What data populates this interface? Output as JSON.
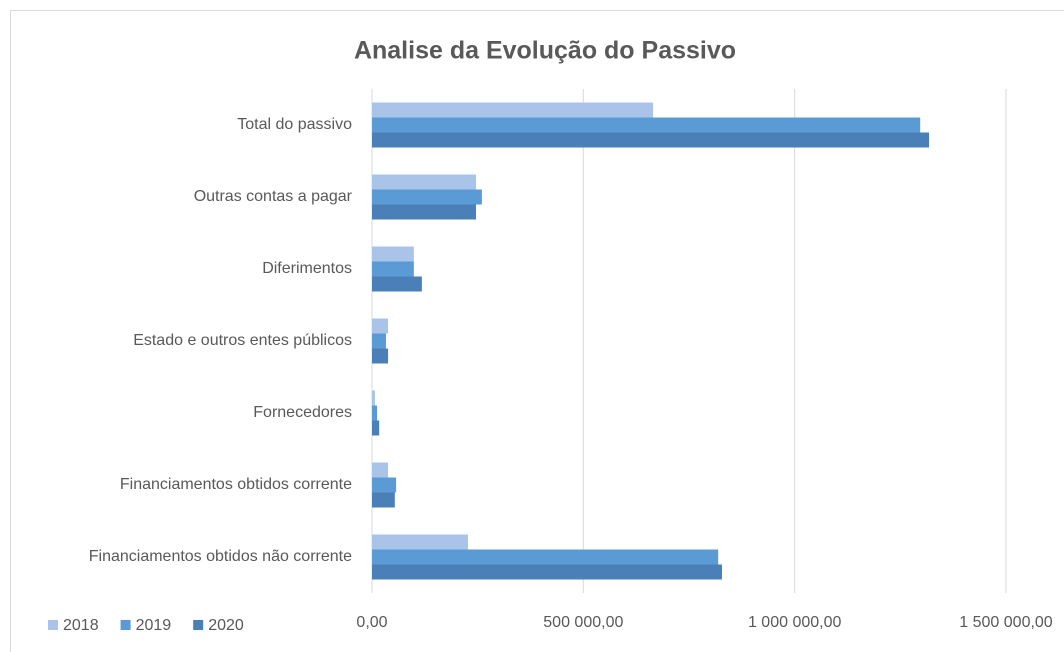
{
  "chart_data": {
    "type": "bar",
    "orientation": "horizontal",
    "title": "Analise da Evolução do Passivo",
    "categories": [
      "Total do passivo",
      "Outras contas a pagar",
      "Diferimentos",
      "Estado e outros entes públicos",
      "Fornecedores",
      "Financiamentos obtidos corrente",
      "Financiamentos obtidos não corrente"
    ],
    "series": [
      {
        "name": "2018",
        "color": "#a9c4e8",
        "values": [
          665000,
          246000,
          99000,
          38000,
          7000,
          38000,
          227000
        ]
      },
      {
        "name": "2019",
        "color": "#5b9bd5",
        "values": [
          1297000,
          260000,
          99000,
          33000,
          12000,
          57000,
          819000
        ]
      },
      {
        "name": "2020",
        "color": "#4a7fb8",
        "values": [
          1318000,
          246000,
          118000,
          38000,
          17000,
          54000,
          828000
        ]
      }
    ],
    "xlim": [
      0,
      1500000
    ],
    "xticks": [
      {
        "value": 0,
        "label": "0,00"
      },
      {
        "value": 500000,
        "label": "500 000,00"
      },
      {
        "value": 1000000,
        "label": "1 000 000,00"
      },
      {
        "value": 1500000,
        "label": "1 500 000,00"
      }
    ],
    "grid": true,
    "legend": "bottom-left"
  }
}
